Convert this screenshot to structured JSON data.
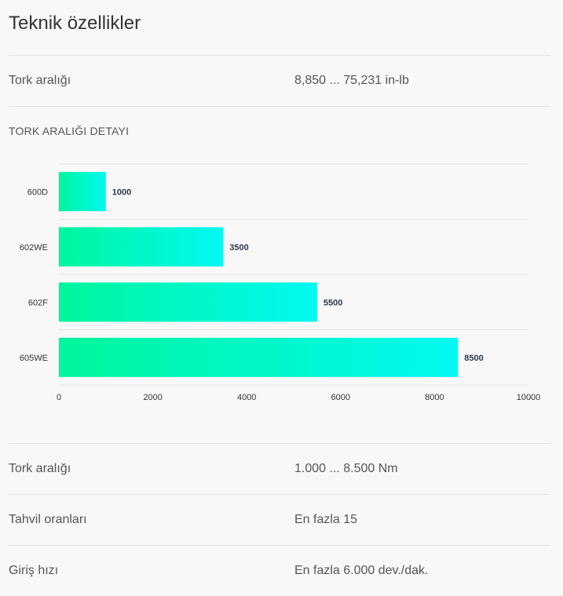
{
  "title": "Teknik özellikler",
  "specs_top": [
    {
      "label": "Tork aralığı",
      "value": "8,850 ... 75,231 in-lb"
    }
  ],
  "section_heading": "TORK ARALIĞI DETAYI",
  "chart_data": {
    "type": "bar",
    "orientation": "horizontal",
    "categories": [
      "600D",
      "602WE",
      "602F",
      "605WE"
    ],
    "values": [
      1000,
      3500,
      5500,
      8500
    ],
    "xlim": [
      0,
      10000
    ],
    "xticks": [
      0,
      2000,
      4000,
      6000,
      8000,
      10000
    ],
    "grid": "horizontal separators",
    "legend": "none",
    "colors": {
      "bar_start": "#00f59b",
      "bar_end": "#00f9f2",
      "gridline": "#e2e2e2",
      "label": "#333333",
      "value_label": "#2d3a4a"
    }
  },
  "specs_bottom": [
    {
      "label": "Tork aralığı",
      "value": "1.000 ... 8.500 Nm"
    },
    {
      "label": "Tahvil oranları",
      "value": "En fazla 15"
    },
    {
      "label": "Giriş hızı",
      "value": "En fazla 6.000 dev./dak."
    }
  ]
}
